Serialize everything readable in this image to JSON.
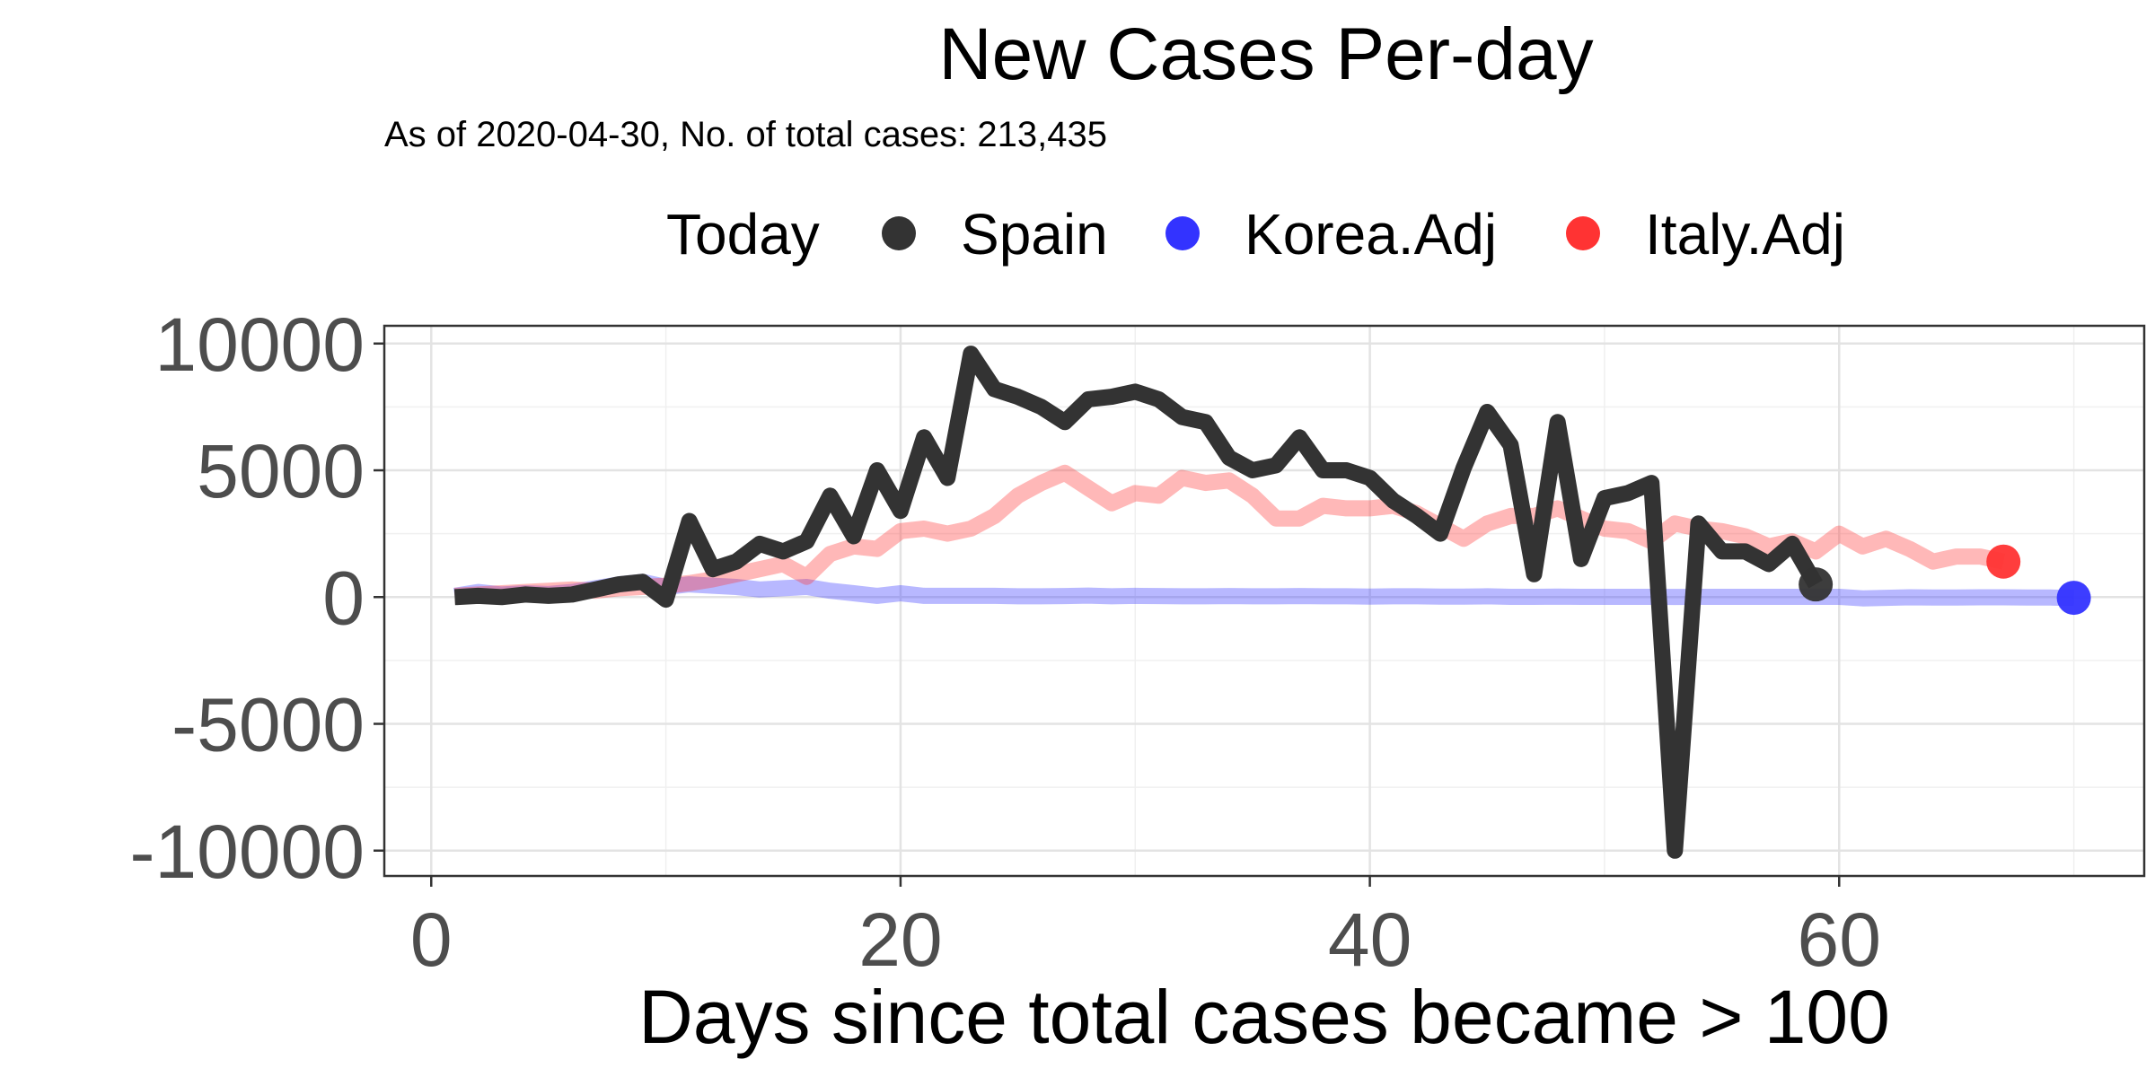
{
  "chart_data": {
    "type": "line",
    "title": "New Cases Per-day",
    "subtitle": "As of 2020-04-30, No. of total cases: 213,435",
    "xlabel": "Days since total cases became > 100",
    "ylabel": "",
    "xlim": [
      -2,
      73
    ],
    "ylim": [
      -11000,
      10700
    ],
    "x_ticks": [
      0,
      20,
      40,
      60
    ],
    "y_ticks": [
      -10000,
      -5000,
      0,
      5000,
      10000
    ],
    "x_minor_ticks": [
      10,
      30,
      50,
      70
    ],
    "y_minor_ticks": [
      -7500,
      -2500,
      2500,
      7500
    ],
    "grid": true,
    "legend": {
      "title": "Today",
      "position": "top",
      "entries": [
        {
          "name": "Spain",
          "color": "#333333"
        },
        {
          "name": "Korea.Adj",
          "color": "#3333ff"
        },
        {
          "name": "Italy.Adj",
          "color": "#ff3333"
        }
      ]
    },
    "series": [
      {
        "name": "Korea.Adj",
        "color": "#3333ff",
        "line_opacity": 0.35,
        "x": [
          1,
          2,
          3,
          4,
          5,
          6,
          7,
          8,
          9,
          10,
          11,
          12,
          13,
          14,
          15,
          16,
          17,
          18,
          19,
          20,
          21,
          22,
          23,
          24,
          25,
          26,
          27,
          28,
          29,
          30,
          31,
          32,
          33,
          34,
          35,
          36,
          37,
          38,
          39,
          40,
          41,
          42,
          43,
          44,
          45,
          46,
          47,
          48,
          49,
          50,
          51,
          52,
          53,
          54,
          55,
          56,
          57,
          58,
          59,
          60,
          61,
          62,
          63,
          64,
          65,
          66,
          67,
          68,
          69,
          70
        ],
        "y": [
          50,
          200,
          100,
          150,
          120,
          200,
          350,
          500,
          600,
          400,
          500,
          450,
          400,
          300,
          350,
          400,
          250,
          150,
          50,
          150,
          50,
          50,
          50,
          50,
          30,
          30,
          40,
          60,
          30,
          50,
          40,
          30,
          30,
          40,
          30,
          30,
          40,
          30,
          30,
          20,
          30,
          30,
          20,
          20,
          30,
          10,
          10,
          20,
          10,
          10,
          10,
          10,
          5,
          10,
          10,
          10,
          10,
          10,
          10,
          10,
          -50,
          -30,
          -10,
          -20,
          -20,
          -10,
          -10,
          -20,
          -20,
          -30
        ]
      },
      {
        "name": "Italy.Adj",
        "color": "#ff3333",
        "line_opacity": 0.35,
        "x": [
          1,
          2,
          3,
          4,
          5,
          6,
          7,
          8,
          9,
          10,
          11,
          12,
          13,
          14,
          15,
          16,
          17,
          18,
          19,
          20,
          21,
          22,
          23,
          24,
          25,
          26,
          27,
          28,
          29,
          30,
          31,
          32,
          33,
          34,
          35,
          36,
          37,
          38,
          39,
          40,
          41,
          42,
          43,
          44,
          45,
          46,
          47,
          48,
          49,
          50,
          51,
          52,
          53,
          54,
          55,
          56,
          57,
          58,
          59,
          60,
          61,
          62,
          63,
          64,
          65,
          66,
          67
        ],
        "y": [
          50,
          100,
          150,
          200,
          250,
          300,
          250,
          350,
          400,
          450,
          550,
          700,
          900,
          1100,
          1300,
          800,
          1700,
          2000,
          1900,
          2600,
          2700,
          2500,
          2700,
          3200,
          4000,
          4500,
          4900,
          4300,
          3700,
          4100,
          4000,
          4700,
          4500,
          4600,
          4000,
          3100,
          3100,
          3600,
          3500,
          3500,
          3600,
          3300,
          2800,
          2300,
          2900,
          3200,
          3200,
          3500,
          3100,
          2700,
          2600,
          2200,
          2900,
          2700,
          2600,
          2400,
          2000,
          2200,
          1800,
          2500,
          2000,
          2300,
          1900,
          1400,
          1600,
          1600,
          1400
        ]
      },
      {
        "name": "Spain",
        "color": "#333333",
        "line_opacity": 1,
        "x": [
          1,
          2,
          3,
          4,
          5,
          6,
          7,
          8,
          9,
          10,
          11,
          12,
          13,
          14,
          15,
          16,
          17,
          18,
          19,
          20,
          21,
          22,
          23,
          24,
          25,
          26,
          27,
          28,
          29,
          30,
          31,
          32,
          33,
          34,
          35,
          36,
          37,
          38,
          39,
          40,
          41,
          42,
          43,
          44,
          45,
          46,
          47,
          48,
          49,
          50,
          51,
          52,
          53,
          54,
          55,
          56,
          57,
          58,
          59
        ],
        "y": [
          0,
          50,
          0,
          100,
          50,
          100,
          300,
          500,
          600,
          -100,
          3000,
          1100,
          1400,
          2100,
          1800,
          2200,
          4000,
          2400,
          5000,
          3400,
          6300,
          4700,
          9600,
          8200,
          7900,
          7500,
          6900,
          7800,
          7900,
          8100,
          7800,
          7100,
          6900,
          5500,
          5000,
          5200,
          6300,
          5000,
          5000,
          4700,
          3800,
          3200,
          2500,
          5100,
          7300,
          6000,
          900,
          6900,
          1500,
          3900,
          4100,
          4500,
          -10000,
          2900,
          1800,
          1800,
          1300,
          2100,
          500
        ]
      }
    ],
    "end_points": [
      {
        "series": "Spain",
        "x": 59,
        "y": 500,
        "color": "#333333"
      },
      {
        "series": "Italy.Adj",
        "x": 67,
        "y": 1400,
        "color": "#ff3333"
      },
      {
        "series": "Korea.Adj",
        "x": 70,
        "y": -30,
        "color": "#3333ff"
      }
    ]
  }
}
